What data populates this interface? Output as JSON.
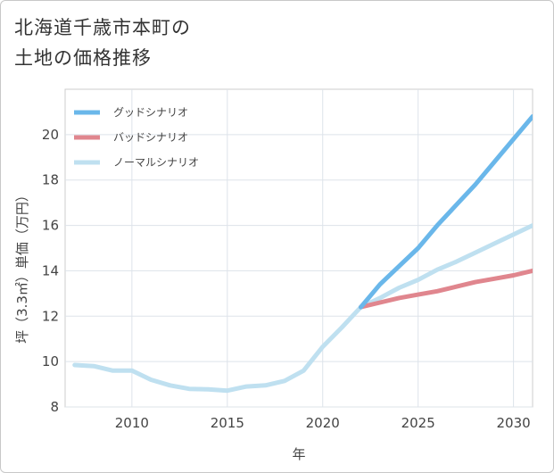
{
  "title_lines": [
    "北海道千歳市本町の",
    "土地の価格推移"
  ],
  "chart_data": {
    "type": "line",
    "title": "北海道千歳市本町の土地の価格推移",
    "xlabel": "年",
    "ylabel": "坪（3.3㎡）単価（万円）",
    "xlim": [
      2006.5,
      2031
    ],
    "ylim": [
      8,
      22
    ],
    "xticks": [
      2010,
      2015,
      2020,
      2025,
      2030
    ],
    "yticks": [
      8,
      10,
      12,
      14,
      16,
      18,
      20
    ],
    "grid": true,
    "legend_position": "top-left",
    "series": [
      {
        "name": "グッドシナリオ",
        "color": "#6ab7ea",
        "x": [
          2022,
          2023,
          2024,
          2025,
          2026,
          2027,
          2028,
          2029,
          2030,
          2031
        ],
        "values": [
          12.4,
          13.4,
          14.2,
          15.0,
          16.0,
          16.9,
          17.8,
          18.8,
          19.8,
          20.8
        ]
      },
      {
        "name": "バッドシナリオ",
        "color": "#e0868e",
        "x": [
          2022,
          2023,
          2024,
          2025,
          2026,
          2027,
          2028,
          2029,
          2030,
          2031
        ],
        "values": [
          12.4,
          12.6,
          12.8,
          12.95,
          13.1,
          13.3,
          13.5,
          13.65,
          13.8,
          14.0
        ]
      },
      {
        "name": "ノーマルシナリオ",
        "color": "#bfe0f0",
        "x": [
          2007,
          2008,
          2009,
          2010,
          2011,
          2012,
          2013,
          2014,
          2015,
          2016,
          2017,
          2018,
          2019,
          2020,
          2021,
          2022,
          2023,
          2024,
          2025,
          2026,
          2027,
          2028,
          2029,
          2030,
          2031
        ],
        "values": [
          9.85,
          9.8,
          9.6,
          9.6,
          9.2,
          8.95,
          8.8,
          8.78,
          8.72,
          8.9,
          8.95,
          9.15,
          9.6,
          10.65,
          11.5,
          12.4,
          12.8,
          13.25,
          13.6,
          14.05,
          14.4,
          14.8,
          15.2,
          15.6,
          16.0
        ]
      }
    ]
  }
}
